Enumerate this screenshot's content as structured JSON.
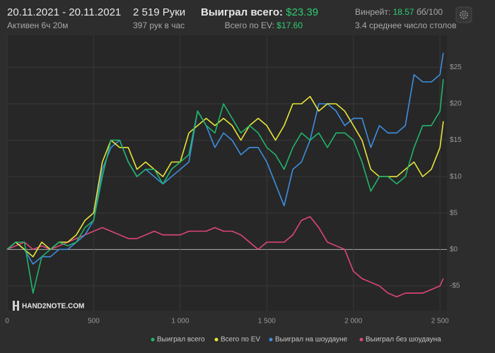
{
  "header": {
    "date_range": "20.11.2021 - 20.11.2021",
    "active": "Активен 6ч 20м",
    "hands": "2 519 Руки",
    "hands_per_hour": "397 рук в час",
    "won_label": "Выиграл всего:",
    "won_value": "$23.39",
    "ev_label": "Всего по EV:",
    "ev_value": "$17.60",
    "winrate_label": "Винрейт:",
    "winrate_value": "18.57",
    "winrate_unit": "бб/100",
    "tables": "3.4 среднее число столов"
  },
  "logo": "HAND2NOTE.COM",
  "chart_data": {
    "type": "line",
    "x": [
      0,
      50,
      100,
      150,
      200,
      250,
      300,
      350,
      400,
      450,
      500,
      550,
      600,
      650,
      700,
      750,
      800,
      850,
      900,
      950,
      1000,
      1050,
      1100,
      1150,
      1200,
      1250,
      1300,
      1350,
      1400,
      1450,
      1500,
      1550,
      1600,
      1650,
      1700,
      1750,
      1800,
      1850,
      1900,
      1950,
      2000,
      2050,
      2100,
      2150,
      2200,
      2250,
      2300,
      2350,
      2400,
      2450,
      2500,
      2519
    ],
    "series": [
      {
        "name": "Выиграл всего",
        "color": "#22b46b",
        "values": [
          0,
          1,
          1,
          -6,
          -1,
          0,
          1,
          0.5,
          1,
          3,
          4,
          10,
          15,
          15,
          12,
          10,
          11,
          11,
          9,
          11,
          12,
          13,
          19,
          17,
          16,
          20,
          18,
          16,
          17,
          16,
          14,
          13,
          11,
          14,
          16,
          15,
          16,
          14,
          16,
          16,
          15,
          12,
          8,
          10,
          10,
          9,
          10,
          14,
          17,
          17,
          19,
          23.39
        ]
      },
      {
        "name": "Всего по EV",
        "color": "#e6e63a",
        "values": [
          0,
          1,
          0,
          -1,
          1,
          0,
          1,
          1,
          2,
          4,
          5,
          12,
          15,
          14,
          14,
          11,
          12,
          11,
          10,
          12,
          12,
          16,
          17,
          18,
          17,
          18,
          17,
          15,
          17,
          18,
          17,
          15,
          17,
          20,
          20,
          21,
          19,
          20,
          20,
          19,
          17,
          15,
          11,
          10,
          10,
          10,
          11,
          12,
          10,
          11,
          14,
          17.6
        ]
      },
      {
        "name": "Выиграл на шоудауне",
        "color": "#3d8fe0",
        "values": [
          0,
          1,
          0,
          -2,
          -1,
          -1,
          0,
          0,
          1,
          2,
          4,
          11,
          14,
          15,
          12,
          10,
          11,
          10,
          9,
          10,
          11,
          12,
          19,
          17,
          14,
          16,
          15,
          13,
          14,
          14,
          12,
          9,
          6,
          11,
          12,
          15,
          20,
          20,
          19,
          17,
          18,
          18,
          14,
          17,
          16,
          16,
          17,
          24,
          23,
          23,
          24,
          27
        ]
      },
      {
        "name": "Выиграл без шоудауна",
        "color": "#e0457b",
        "values": [
          0,
          0.5,
          1,
          0,
          0.5,
          0,
          0.5,
          1,
          1.5,
          2,
          2.5,
          3,
          2.5,
          2,
          1.5,
          1.5,
          2,
          2.5,
          2,
          2,
          2,
          2.5,
          2.5,
          2.5,
          3,
          2.5,
          2.5,
          2,
          1,
          0,
          1,
          1,
          1,
          2,
          4,
          4.5,
          3,
          1,
          0.5,
          0,
          -3,
          -4,
          -4.5,
          -5,
          -6,
          -6.5,
          -6,
          -6,
          -6,
          -5.5,
          -5,
          -4
        ]
      }
    ],
    "xlim": [
      0,
      2540
    ],
    "ylim": [
      -8.4,
      29.4
    ],
    "xticks": [
      0,
      500,
      {
        "value": 1000,
        "label": "1 000"
      },
      {
        "value": 1500,
        "label": "1 500"
      },
      {
        "value": 2000,
        "label": "2 000"
      },
      {
        "value": 2500,
        "label": "2 500"
      }
    ],
    "yticks": [
      {
        "value": -5,
        "label": "-$5"
      },
      {
        "value": 0,
        "label": "$0"
      },
      {
        "value": 5,
        "label": "$5"
      },
      {
        "value": 10,
        "label": "$10"
      },
      {
        "value": 15,
        "label": "$15"
      },
      {
        "value": 20,
        "label": "$20"
      },
      {
        "value": 25,
        "label": "$25"
      }
    ],
    "grid": true,
    "legend": "bottom"
  }
}
